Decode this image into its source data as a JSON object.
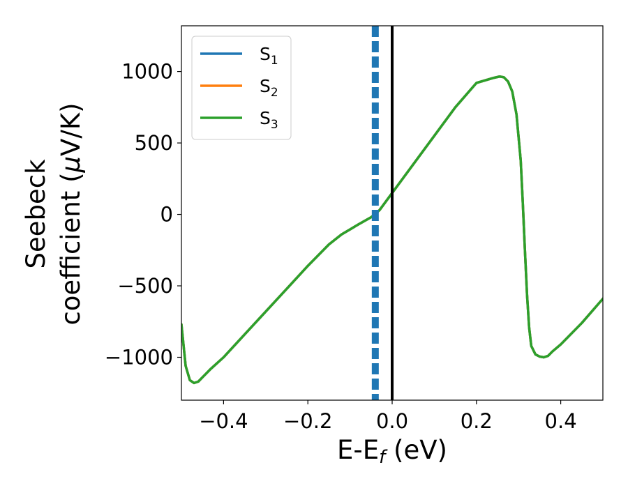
{
  "chart_data": {
    "type": "line",
    "xlabel": {
      "main": "E-E",
      "sub": "f",
      "suffix": " (eV)"
    },
    "ylabel": {
      "line1": "Seebeck",
      "line2_prefix": "coefficient  (",
      "mu": "μ",
      "line2_suffix": "V/K)"
    },
    "xlim": [
      -0.5,
      0.5
    ],
    "ylim": [
      -1300,
      1320
    ],
    "x_ticks": [
      -0.4,
      -0.2,
      0.0,
      0.2,
      0.4
    ],
    "x_tick_labels": [
      "−0.4",
      "−0.2",
      "0.0",
      "0.2",
      "0.4"
    ],
    "y_ticks": [
      1000,
      500,
      0,
      -500,
      -1000
    ],
    "y_tick_labels": [
      "1000",
      "500",
      "0",
      "−500",
      "−1000"
    ],
    "grid": false,
    "legend_position": "top-left",
    "legend": [
      {
        "main": "S",
        "sub": "1",
        "color": "#1f77b4"
      },
      {
        "main": "S",
        "sub": "2",
        "color": "#ff7f0e"
      },
      {
        "main": "S",
        "sub": "3",
        "color": "#2ca02c"
      }
    ],
    "vertical_lines": [
      {
        "x": -0.04,
        "style": "dashed",
        "color": "#1f77b4"
      },
      {
        "x": 0.0,
        "style": "solid",
        "color": "#000000"
      }
    ],
    "x": [
      -0.5,
      -0.49,
      -0.48,
      -0.47,
      -0.46,
      -0.45,
      -0.43,
      -0.4,
      -0.35,
      -0.3,
      -0.25,
      -0.2,
      -0.15,
      -0.12,
      -0.1,
      -0.08,
      -0.05,
      -0.03,
      0.0,
      0.05,
      0.1,
      0.15,
      0.2,
      0.24,
      0.255,
      0.265,
      0.275,
      0.285,
      0.295,
      0.305,
      0.31,
      0.315,
      0.32,
      0.325,
      0.33,
      0.34,
      0.35,
      0.36,
      0.37,
      0.38,
      0.4,
      0.45,
      0.5
    ],
    "series": [
      {
        "name": "S$_1$",
        "color": "#1f77b4",
        "values": [
          -770,
          -1060,
          -1160,
          -1180,
          -1170,
          -1140,
          -1080,
          -1000,
          -840,
          -680,
          -520,
          -360,
          -210,
          -140,
          -105,
          -70,
          -20,
          30,
          150,
          350,
          550,
          750,
          920,
          955,
          965,
          960,
          930,
          860,
          700,
          380,
          80,
          -250,
          -560,
          -790,
          -920,
          -980,
          -995,
          -1000,
          -990,
          -960,
          -910,
          -760,
          -590
        ]
      },
      {
        "name": "S$_2$",
        "color": "#ff7f0e",
        "values": [
          -770,
          -1060,
          -1160,
          -1180,
          -1170,
          -1140,
          -1080,
          -1000,
          -840,
          -680,
          -520,
          -360,
          -210,
          -140,
          -105,
          -70,
          -20,
          30,
          150,
          350,
          550,
          750,
          920,
          955,
          965,
          960,
          930,
          860,
          700,
          380,
          80,
          -250,
          -560,
          -790,
          -920,
          -980,
          -995,
          -1000,
          -990,
          -960,
          -910,
          -760,
          -590
        ]
      },
      {
        "name": "S$_3$",
        "color": "#2ca02c",
        "values": [
          -770,
          -1060,
          -1160,
          -1180,
          -1170,
          -1140,
          -1080,
          -1000,
          -840,
          -680,
          -520,
          -360,
          -210,
          -140,
          -105,
          -70,
          -20,
          30,
          150,
          350,
          550,
          750,
          920,
          955,
          965,
          960,
          930,
          860,
          700,
          380,
          80,
          -250,
          -560,
          -790,
          -920,
          -980,
          -995,
          -1000,
          -990,
          -960,
          -910,
          -760,
          -590
        ]
      }
    ]
  }
}
